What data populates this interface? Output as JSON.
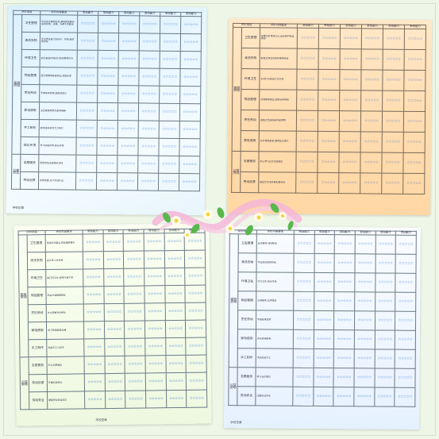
{
  "colors": {
    "star": "#2f6fd1",
    "page_bg": "#eef6e8",
    "accent_pink": "#f4b6d8"
  },
  "star_glyph": "☆☆☆☆☆",
  "header": {
    "project": "评价项目",
    "content": "评价内容要求",
    "headers": [
      "劳动能力",
      "劳动能力",
      "劳动能力",
      "劳动能力",
      "劳动能力",
      "劳动能力"
    ]
  },
  "sheet1": {
    "sections": [
      {
        "category": "家庭劳动",
        "items": [
          {
            "name": "卫生整理",
            "desc": "学会自主整理房间,桌椅摆放整齐,保持衣柜、床铺、书桌干净整洁"
          },
          {
            "name": "清洗衣物",
            "desc": "学会清洗自己的袜子、衣物,能晾晒衣物"
          },
          {
            "name": "环境卫生",
            "desc": "能对家庭环境进行简单整理打扫"
          },
          {
            "name": "物品整理",
            "desc": "能分类整理家庭物品,摆放有序"
          },
          {
            "name": "烹饪劳动",
            "desc": "学做简单饭菜,能帮助家长"
          },
          {
            "name": "家电使用",
            "desc": "会正确使用常见家用电器"
          },
          {
            "name": "手工制作",
            "desc": "能完成简单的手工制作"
          },
          {
            "name": "绿化环境",
            "desc": "参与种植花草,美化环境"
          }
        ]
      },
      {
        "category": "公益劳动",
        "items": [
          {
            "name": "志愿服务",
            "desc": "积极参加志愿服务活动"
          },
          {
            "name": "劳动创意",
            "desc": "发挥创意,设计劳动作品"
          }
        ]
      }
    ],
    "footer": "学校签章"
  },
  "sheet2": {
    "sections": [
      {
        "category": "家庭劳动",
        "items": [
          {
            "name": "卫生整理",
            "desc": "掌握卫生清洁方法,自觉维护家庭整洁"
          },
          {
            "name": "清洗衣物",
            "desc": "能独立清洗衣物并整理收纳"
          },
          {
            "name": "环境卫生",
            "desc": "主动打扫家庭公共区域"
          },
          {
            "name": "物品整理",
            "desc": "合理整理物品,摆放有序美观"
          },
          {
            "name": "烹饪劳动",
            "desc": "能独立完成简单的家常菜"
          },
          {
            "name": "家电使用",
            "desc": "安全使用家电,懂得基本维护"
          }
        ]
      },
      {
        "category": "公益劳动",
        "items": [
          {
            "name": "志愿服务",
            "desc": "热心参与社区志愿服务"
          },
          {
            "name": "劳动创意",
            "desc": "能结合生活开展创意劳动"
          }
        ]
      }
    ]
  },
  "sheet3": {
    "title_project": "评价项目",
    "title_content": "评价内容要求",
    "sections": [
      {
        "category": "家庭劳动",
        "items": [
          {
            "name": "卫生整理",
            "desc": "保持房间整洁,物品摆放整齐"
          },
          {
            "name": "清洗衣物",
            "desc": "会手洗小件衣物"
          },
          {
            "name": "环境卫生",
            "desc": "能打扫卫生,保持环境干净"
          },
          {
            "name": "物品整理",
            "desc": "学会分类整理物品"
          },
          {
            "name": "烹饪劳动",
            "desc": "参与简单烹饪劳动"
          },
          {
            "name": "家电使用",
            "desc": "学习使用家用电器"
          },
          {
            "name": "手工制作",
            "desc": "完成手工小制作"
          }
        ]
      },
      {
        "category": "公益劳动",
        "items": [
          {
            "name": "志愿服务",
            "desc": "参与志愿服务"
          },
          {
            "name": "劳动创意",
            "desc": "开展创意劳动"
          },
          {
            "name": "劳动安全",
            "desc": "掌握劳动安全知识"
          }
        ]
      }
    ],
    "footer": "学校签章"
  },
  "sheet4": {
    "sections": [
      {
        "category": "家庭劳动",
        "items": [
          {
            "name": "卫生整理",
            "desc": "自主整理,保持整洁"
          },
          {
            "name": "清洗衣物",
            "desc": "学会清洗晾晒衣物"
          },
          {
            "name": "环境卫生",
            "desc": "打扫卫生,美化环境"
          },
          {
            "name": "物品整理",
            "desc": "分类整理,有序摆放"
          },
          {
            "name": "烹饪劳动",
            "desc": "学做家常饭菜"
          },
          {
            "name": "家电使用",
            "desc": "安全使用家电"
          },
          {
            "name": "手工制作",
            "desc": "完成简单手工"
          }
        ]
      },
      {
        "category": "公益劳动",
        "items": [
          {
            "name": "志愿服务",
            "desc": "参与社区服务"
          },
          {
            "name": "劳动安全",
            "desc": "注意劳动安全"
          }
        ]
      }
    ],
    "footer": "学校签章"
  }
}
